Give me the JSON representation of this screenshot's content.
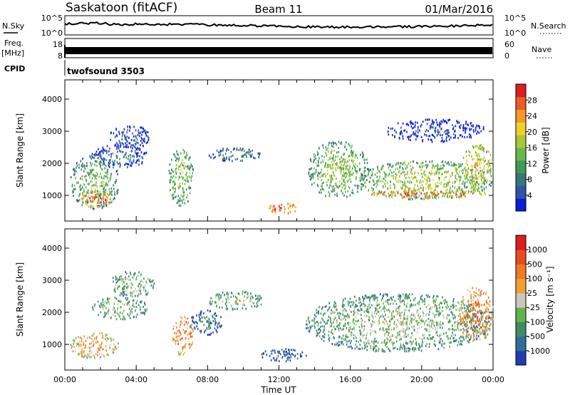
{
  "header": {
    "station": "Saskatoon (fitACF)",
    "beam": "Beam 11",
    "date": "01/Mar/2016"
  },
  "strips": {
    "nsky": {
      "label": "N.Sky",
      "left_ticks": [
        "10^5",
        "10^0"
      ],
      "right_ticks": [
        "10^5",
        "10^0"
      ],
      "right_label": "N.Search"
    },
    "freq": {
      "label_line1": "Freq.",
      "label_line2": "[MHz]",
      "left_ticks": [
        "18",
        "8"
      ],
      "right_ticks": [
        "60",
        "0"
      ],
      "right_label": "Nave"
    },
    "cpid": {
      "label": "CPID",
      "program": "twofsound 3503"
    }
  },
  "chart_data": [
    {
      "type": "heatmap",
      "panel": "power",
      "ylabel": "Slant Range [km]",
      "ylim": [
        200,
        4600
      ],
      "yticks": [
        1000,
        2000,
        3000,
        4000
      ],
      "xlabel": "Time UT",
      "xlim_hours": [
        0,
        24
      ],
      "xticks": [
        "00:00",
        "04:00",
        "08:00",
        "12:00",
        "16:00",
        "20:00",
        "00:00"
      ],
      "colorbar": {
        "label": "Power [dB]",
        "ticks": [
          "28",
          "24",
          "20",
          "16",
          "12",
          "8",
          "4"
        ],
        "colors": [
          "#0a1ed8",
          "#2e52a8",
          "#35777a",
          "#3f9a52",
          "#67b84a",
          "#a9c738",
          "#f0d22a",
          "#f39a2a",
          "#ec5a26",
          "#dc1e1e"
        ]
      },
      "regions": [
        {
          "t0": 0.3,
          "t1": 3.0,
          "r0": 600,
          "r1": 2300,
          "level": 0.45
        },
        {
          "t0": 0.8,
          "t1": 2.6,
          "r0": 650,
          "r1": 1150,
          "level": 0.9
        },
        {
          "t0": 1.5,
          "t1": 4.6,
          "r0": 1900,
          "r1": 2600,
          "level": 0.2
        },
        {
          "t0": 2.5,
          "t1": 4.8,
          "r0": 2500,
          "r1": 3200,
          "level": 0.15
        },
        {
          "t0": 5.8,
          "t1": 7.2,
          "r0": 700,
          "r1": 2500,
          "level": 0.5
        },
        {
          "t0": 8.0,
          "t1": 11.0,
          "r0": 2100,
          "r1": 2500,
          "level": 0.3
        },
        {
          "t0": 11.3,
          "t1": 13.0,
          "r0": 450,
          "r1": 800,
          "level": 0.95
        },
        {
          "t0": 13.6,
          "t1": 17.0,
          "r0": 950,
          "r1": 2700,
          "level": 0.5
        },
        {
          "t0": 16.5,
          "t1": 23.9,
          "r0": 900,
          "r1": 2100,
          "level": 0.55
        },
        {
          "t0": 17.0,
          "t1": 23.9,
          "r0": 950,
          "r1": 1200,
          "level": 0.9
        },
        {
          "t0": 22.2,
          "t1": 24.0,
          "r0": 1200,
          "r1": 2600,
          "level": 0.7
        },
        {
          "t0": 18.0,
          "t1": 23.5,
          "r0": 2700,
          "r1": 3400,
          "level": 0.1
        }
      ]
    },
    {
      "type": "heatmap",
      "panel": "velocity",
      "ylabel": "Slant Range [km]",
      "ylim": [
        200,
        4600
      ],
      "yticks": [
        1000,
        2000,
        3000,
        4000
      ],
      "xlabel": "Time UT",
      "xlim_hours": [
        0,
        24
      ],
      "xticks": [
        "00:00",
        "04:00",
        "08:00",
        "12:00",
        "16:00",
        "20:00",
        "00:00"
      ],
      "colorbar": {
        "label": "Velocity [m s⁻¹]",
        "ticks": [
          "1000",
          "500",
          "100",
          "25",
          "-25",
          "-100",
          "-500",
          "-1000"
        ],
        "colors": [
          "#1f3fb0",
          "#2f6f9a",
          "#3f8c63",
          "#62b34c",
          "#c8c8c0",
          "#f0a032",
          "#f07a20",
          "#ea4a20",
          "#dc1e1e"
        ]
      },
      "regions": [
        {
          "t0": 0.3,
          "t1": 3.0,
          "r0": 600,
          "r1": 1400,
          "level": 0.7
        },
        {
          "t0": 1.5,
          "t1": 4.6,
          "r0": 1800,
          "r1": 2500,
          "level": 0.45
        },
        {
          "t0": 2.5,
          "t1": 5.0,
          "r0": 2500,
          "r1": 3300,
          "level": 0.45
        },
        {
          "t0": 6.0,
          "t1": 7.2,
          "r0": 700,
          "r1": 1900,
          "level": 0.8
        },
        {
          "t0": 7.0,
          "t1": 8.8,
          "r0": 1300,
          "r1": 2100,
          "level": 0.2
        },
        {
          "t0": 8.0,
          "t1": 11.2,
          "r0": 2100,
          "r1": 2700,
          "level": 0.45
        },
        {
          "t0": 11.0,
          "t1": 13.5,
          "r0": 500,
          "r1": 900,
          "level": 0.15
        },
        {
          "t0": 13.5,
          "t1": 23.8,
          "r0": 800,
          "r1": 2600,
          "level": 0.45
        },
        {
          "t0": 22.0,
          "t1": 24.0,
          "r0": 1100,
          "r1": 2800,
          "level": 0.8
        }
      ]
    }
  ]
}
